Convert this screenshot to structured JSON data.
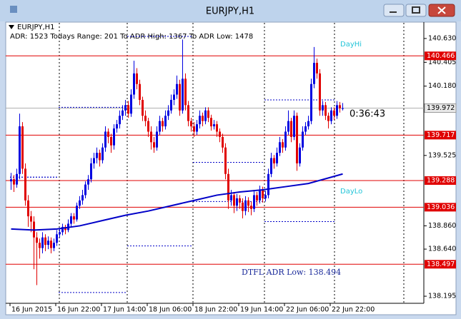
{
  "window_title": "EURJPY,H1",
  "chart_data": {
    "type": "candlestick",
    "title": "EURJPY,H1",
    "info": "ADR: 1523  Todays Range: 201  To ADR High: 1367  To ADR Low: 1478",
    "annotations": {
      "day_high": "DayHi",
      "day_low": "DayLo",
      "timer": "0:36:43",
      "adr_low": "DTFL ADR Low: 138.494"
    },
    "colors": {
      "up": "#0000e0",
      "down": "#e00000",
      "ma": "#0000c8",
      "ranges": "#0000c8",
      "level": "#e00000",
      "current": "#b0b0b0",
      "day_text": "#22c4d8"
    },
    "ylim": [
      138.128,
      140.778
    ],
    "yticks": [
      {
        "value": 140.63,
        "label": "140.630"
      },
      140.405,
      {
        "value": 140.18,
        "label": "140.180"
      },
      139.525,
      {
        "value": 138.86,
        "label": "138.860"
      },
      {
        "value": 138.64,
        "label": "138.640"
      },
      138.195
    ],
    "categories": [
      "16 Jun 2015",
      null,
      null,
      null,
      null,
      null,
      null,
      null,
      null,
      null,
      null,
      null,
      null,
      null,
      null,
      null,
      "16 Jun 22:00",
      null,
      null,
      null,
      null,
      null,
      null,
      null,
      null,
      null,
      null,
      null,
      null,
      null,
      null,
      null,
      "17 Jun 14:00",
      null,
      null,
      null,
      null,
      null,
      null,
      null,
      null,
      null,
      null,
      null,
      null,
      null,
      null,
      null,
      "18 Jun 06:00",
      null,
      null,
      null,
      null,
      null,
      null,
      null,
      null,
      null,
      null,
      null,
      null,
      null,
      null,
      null,
      "18 Jun 22:00",
      null,
      null,
      null,
      null,
      null,
      null,
      null,
      null,
      null,
      null,
      null,
      null,
      null,
      null,
      null,
      "19 Jun 14:00",
      null,
      null,
      null,
      null,
      null,
      null,
      null,
      null,
      null,
      null,
      null,
      null,
      null,
      null,
      null,
      "22 Jun 06:00",
      null,
      null,
      null,
      null,
      null,
      null,
      null,
      null,
      null,
      null,
      null,
      null,
      null,
      null,
      null,
      "22 Jun 22:00",
      null,
      null,
      null,
      null
    ],
    "candles": [
      [
        139.28,
        139.36,
        139.2,
        139.3
      ],
      [
        139.3,
        139.34,
        139.18,
        139.25
      ],
      [
        139.25,
        139.4,
        139.22,
        139.35
      ],
      [
        139.35,
        139.92,
        139.3,
        139.8
      ],
      [
        139.8,
        139.84,
        139.35,
        139.4
      ],
      [
        139.4,
        139.45,
        139.05,
        139.1
      ],
      [
        139.1,
        139.15,
        138.85,
        138.95
      ],
      [
        138.95,
        139.0,
        138.8,
        138.9
      ],
      [
        138.9,
        138.95,
        138.45,
        138.75
      ],
      [
        138.75,
        138.8,
        138.3,
        138.7
      ],
      [
        138.7,
        138.74,
        138.55,
        138.65
      ],
      [
        138.65,
        138.8,
        138.6,
        138.75
      ],
      [
        138.75,
        138.78,
        138.62,
        138.68
      ],
      [
        138.68,
        138.76,
        138.64,
        138.72
      ],
      [
        138.72,
        138.75,
        138.6,
        138.65
      ],
      [
        138.65,
        138.74,
        138.62,
        138.7
      ],
      [
        138.7,
        138.82,
        138.67,
        138.78
      ],
      [
        138.78,
        138.84,
        138.75,
        138.8
      ],
      [
        138.8,
        138.88,
        138.77,
        138.85
      ],
      [
        138.85,
        138.87,
        138.78,
        138.82
      ],
      [
        138.82,
        138.92,
        138.8,
        138.88
      ],
      [
        138.88,
        138.98,
        138.85,
        138.95
      ],
      [
        138.95,
        138.98,
        138.88,
        138.92
      ],
      [
        138.92,
        139.08,
        138.9,
        139.05
      ],
      [
        139.05,
        139.14,
        139.02,
        139.1
      ],
      [
        139.1,
        139.2,
        139.06,
        139.15
      ],
      [
        139.15,
        139.28,
        139.12,
        139.25
      ],
      [
        139.25,
        139.34,
        139.2,
        139.3
      ],
      [
        139.3,
        139.5,
        139.27,
        139.45
      ],
      [
        139.45,
        139.55,
        139.4,
        139.5
      ],
      [
        139.5,
        139.6,
        139.45,
        139.55
      ],
      [
        139.55,
        139.58,
        139.42,
        139.48
      ],
      [
        139.48,
        139.64,
        139.45,
        139.6
      ],
      [
        139.6,
        139.8,
        139.56,
        139.75
      ],
      [
        139.75,
        139.78,
        139.64,
        139.7
      ],
      [
        139.7,
        139.73,
        139.55,
        139.62
      ],
      [
        139.62,
        139.82,
        139.58,
        139.78
      ],
      [
        139.78,
        139.86,
        139.74,
        139.82
      ],
      [
        139.82,
        139.95,
        139.78,
        139.9
      ],
      [
        139.9,
        140.0,
        139.86,
        139.95
      ],
      [
        139.95,
        140.05,
        139.9,
        140.0
      ],
      [
        140.0,
        140.04,
        139.88,
        139.92
      ],
      [
        139.92,
        140.15,
        139.89,
        140.1
      ],
      [
        140.1,
        140.42,
        140.06,
        140.3
      ],
      [
        140.3,
        140.35,
        140.15,
        140.2
      ],
      [
        140.2,
        140.24,
        140.0,
        140.05
      ],
      [
        140.05,
        140.08,
        139.85,
        139.9
      ],
      [
        139.9,
        139.95,
        139.8,
        139.85
      ],
      [
        139.85,
        139.88,
        139.7,
        139.75
      ],
      [
        139.75,
        139.8,
        139.58,
        139.65
      ],
      [
        139.65,
        139.7,
        139.55,
        139.6
      ],
      [
        139.6,
        139.8,
        139.57,
        139.75
      ],
      [
        139.75,
        139.9,
        139.72,
        139.85
      ],
      [
        139.85,
        139.88,
        139.75,
        139.8
      ],
      [
        139.8,
        139.95,
        139.77,
        139.9
      ],
      [
        139.9,
        140.0,
        139.86,
        139.95
      ],
      [
        139.95,
        140.1,
        139.92,
        140.05
      ],
      [
        140.05,
        140.15,
        140.0,
        140.1
      ],
      [
        140.1,
        140.28,
        140.06,
        140.2
      ],
      [
        140.2,
        140.24,
        139.9,
        139.95
      ],
      [
        139.95,
        140.62,
        139.92,
        140.25
      ],
      [
        140.25,
        140.3,
        139.95,
        140.0
      ],
      [
        140.0,
        140.04,
        139.8,
        139.85
      ],
      [
        139.85,
        139.88,
        139.75,
        139.8
      ],
      [
        139.8,
        139.84,
        139.7,
        139.75
      ],
      [
        139.75,
        139.86,
        139.72,
        139.82
      ],
      [
        139.82,
        139.95,
        139.78,
        139.9
      ],
      [
        139.9,
        139.93,
        139.8,
        139.85
      ],
      [
        139.85,
        139.98,
        139.82,
        139.95
      ],
      [
        139.95,
        139.98,
        139.84,
        139.88
      ],
      [
        139.88,
        139.91,
        139.76,
        139.8
      ],
      [
        139.8,
        139.86,
        139.77,
        139.82
      ],
      [
        139.82,
        139.85,
        139.7,
        139.75
      ],
      [
        139.75,
        139.78,
        139.65,
        139.7
      ],
      [
        139.7,
        139.73,
        139.55,
        139.6
      ],
      [
        139.6,
        139.64,
        139.3,
        139.35
      ],
      [
        139.35,
        139.4,
        139.02,
        139.1
      ],
      [
        139.1,
        139.2,
        139.05,
        139.15
      ],
      [
        139.15,
        139.18,
        138.98,
        139.05
      ],
      [
        139.05,
        139.16,
        139.0,
        139.12
      ],
      [
        139.12,
        139.15,
        139.02,
        139.08
      ],
      [
        139.08,
        139.12,
        138.93,
        139.0
      ],
      [
        139.0,
        139.14,
        138.96,
        139.1
      ],
      [
        139.1,
        139.13,
        138.99,
        139.05
      ],
      [
        139.05,
        139.09,
        138.96,
        139.02
      ],
      [
        139.02,
        139.2,
        138.99,
        139.15
      ],
      [
        139.15,
        139.18,
        139.05,
        139.1
      ],
      [
        139.1,
        139.24,
        139.07,
        139.2
      ],
      [
        139.2,
        139.23,
        139.08,
        139.12
      ],
      [
        139.12,
        139.19,
        139.09,
        139.15
      ],
      [
        139.15,
        139.4,
        139.12,
        139.35
      ],
      [
        139.35,
        139.55,
        139.32,
        139.5
      ],
      [
        139.5,
        139.53,
        139.4,
        139.45
      ],
      [
        139.45,
        139.6,
        139.42,
        139.55
      ],
      [
        139.55,
        139.7,
        139.52,
        139.65
      ],
      [
        139.65,
        139.68,
        139.55,
        139.6
      ],
      [
        139.6,
        139.8,
        139.57,
        139.75
      ],
      [
        139.75,
        139.95,
        139.72,
        139.85
      ],
      [
        139.85,
        139.88,
        139.65,
        139.7
      ],
      [
        139.7,
        139.95,
        139.67,
        139.9
      ],
      [
        139.9,
        139.93,
        139.38,
        139.45
      ],
      [
        139.45,
        139.64,
        139.42,
        139.6
      ],
      [
        139.6,
        139.8,
        139.57,
        139.75
      ],
      [
        139.75,
        139.84,
        139.72,
        139.8
      ],
      [
        139.8,
        139.9,
        139.77,
        139.85
      ],
      [
        139.85,
        140.25,
        139.82,
        140.2
      ],
      [
        140.2,
        140.55,
        140.16,
        140.4
      ],
      [
        140.4,
        140.44,
        140.25,
        140.3
      ],
      [
        140.3,
        140.34,
        139.9,
        139.95
      ],
      [
        139.95,
        140.04,
        139.9,
        140.0
      ],
      [
        140.0,
        140.03,
        139.86,
        139.9
      ],
      [
        139.9,
        139.93,
        139.78,
        139.85
      ],
      [
        139.85,
        139.98,
        139.82,
        139.95
      ],
      [
        139.95,
        139.98,
        139.86,
        139.9
      ],
      [
        139.9,
        140.04,
        139.87,
        140.0
      ],
      [
        140.0,
        140.03,
        139.93,
        139.97
      ],
      [
        139.97,
        140.02,
        139.95,
        139.972
      ]
    ],
    "moving_average": {
      "x": [
        0,
        8,
        16,
        24,
        32,
        40,
        48,
        56,
        64,
        72,
        80,
        88,
        96,
        104,
        112,
        116
      ],
      "values": [
        138.83,
        138.82,
        138.83,
        138.86,
        138.91,
        138.96,
        139.0,
        139.05,
        139.1,
        139.15,
        139.18,
        139.2,
        139.23,
        139.26,
        139.32,
        139.35
      ]
    },
    "day_ranges": [
      {
        "from": 0,
        "to": 17,
        "high": 139.32,
        "low": 139.32
      },
      {
        "from": 17,
        "to": 41,
        "high": 139.98,
        "low": 138.23
      },
      {
        "from": 41,
        "to": 64,
        "high": 140.65,
        "low": 138.67
      },
      {
        "from": 64,
        "to": 89,
        "high": 139.46,
        "low": 139.09
      },
      {
        "from": 89,
        "to": 114,
        "high": 140.05,
        "low": 138.9
      }
    ],
    "levels": [
      140.466,
      139.717,
      139.288,
      139.036,
      138.497
    ],
    "current_price": 139.972
  }
}
